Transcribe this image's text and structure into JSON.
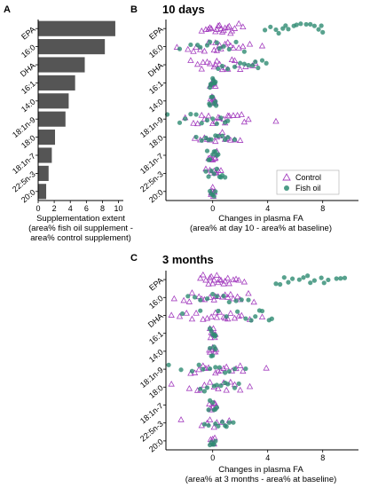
{
  "panel_a": {
    "label": "A",
    "xlabel_lines": [
      "Supplementation extent",
      "(area% fish oil supplement -",
      "area% control supplement)"
    ]
  },
  "panel_b": {
    "label": "B",
    "title": "10 days",
    "xlabel_lines": [
      "Changes in plasma FA",
      "(area% at day 10 -  area% at baseline)"
    ]
  },
  "panel_c": {
    "label": "C",
    "title": "3 months",
    "xlabel_lines": [
      "Changes in plasma FA",
      "(area% at 3 months -  area% at baseline)"
    ]
  },
  "legend": {
    "items": [
      "Control",
      "Fish oil"
    ]
  },
  "colors": {
    "bar": "#555555",
    "control": "#a43fbf",
    "fish_oil": "#2e8b72",
    "axis": "#000000"
  },
  "chart_data": [
    {
      "type": "bar",
      "orientation": "horizontal",
      "categories": [
        "EPA",
        "16:0",
        "DHA",
        "16:1",
        "14:0",
        "18:1n-9",
        "18:0",
        "18:1n-7",
        "22:5n-3",
        "20:0"
      ],
      "values": [
        9.6,
        8.3,
        5.8,
        4.6,
        3.8,
        3.4,
        2.1,
        1.7,
        1.3,
        1.0
      ],
      "xticks": [
        0,
        2,
        4,
        6,
        8,
        10
      ],
      "xlim": [
        0,
        10.6
      ]
    },
    {
      "type": "scatter",
      "orientation": "horizontal-strip",
      "categories": [
        "EPA",
        "16:0",
        "DHA",
        "16:1",
        "14:0",
        "18:1n-9",
        "18:0",
        "18:1n-7",
        "22:5n-3",
        "20:0"
      ],
      "xticks": [
        0,
        4,
        8
      ],
      "xlim": [
        -3.4,
        10.6
      ],
      "series": [
        {
          "name": "Control",
          "marker": "triangle-open",
          "points": [
            [
              0.5,
              1.4,
              -0.3,
              0.9,
              1.2,
              0.2,
              -0.8,
              1.6,
              0.6,
              -0.1,
              1.9,
              0.3,
              -0.5,
              1.1,
              0.7,
              2.2,
              -0.2,
              0.4,
              1.3,
              0.8
            ],
            [
              -1.2,
              0.5,
              1.3,
              -2.6,
              0.2,
              1.9,
              -0.6,
              0.9,
              2.7,
              -1.8,
              0.1,
              1.5,
              -0.3,
              2.2,
              -0.9,
              0.6,
              1.1,
              3.6,
              -1.4,
              0.3
            ],
            [
              -0.8,
              1.1,
              0.3,
              2.4,
              -1.6,
              0.7,
              1.8,
              -0.2,
              2.9,
              0.5,
              -1.1,
              1.4,
              0.1,
              3.1,
              -0.4,
              0.9,
              2.0,
              -0.7,
              1.6,
              0.2
            ],
            [
              0.1,
              -0.1,
              0.2,
              0.0,
              -0.2,
              0.1,
              0.05,
              -0.05
            ],
            [
              0.2,
              -0.1,
              0.0,
              0.15,
              -0.15,
              0.05,
              -0.05,
              0.1
            ],
            [
              -1.1,
              0.4,
              1.2,
              -0.6,
              2.1,
              0.8,
              -2.0,
              1.5,
              0.2,
              -0.3,
              2.6,
              0.9,
              -1.4,
              1.8,
              0.0,
              4.6,
              -0.8,
              1.1,
              0.5,
              2.3
            ],
            [
              -0.9,
              0.3,
              1.1,
              -0.4,
              0.7,
              1.6,
              -1.3,
              0.2,
              2.0,
              -0.2,
              0.9,
              1.3,
              -0.6,
              0.5
            ],
            [
              0.1,
              -0.1,
              0.3,
              -0.3,
              0.2,
              0.0,
              -0.2,
              0.15
            ],
            [
              0.4,
              -0.2,
              0.1,
              -0.5,
              0.3,
              0.6,
              -0.1,
              0.2
            ],
            [
              0.1,
              -0.1,
              0.05,
              -0.05,
              0.0,
              0.12,
              -0.12
            ]
          ]
        },
        {
          "name": "Fish oil",
          "marker": "circle",
          "points": [
            [
              4.2,
              4.8,
              5.3,
              5.9,
              6.4,
              7.1,
              7.7,
              8.0,
              5.5,
              6.8,
              4.6,
              7.4,
              5.1,
              6.1,
              7.9,
              3.8
            ],
            [
              -0.4,
              0.8,
              -1.6,
              1.2,
              0.3,
              -0.9,
              1.7,
              -2.4,
              0.5,
              -0.2,
              2.3,
              -1.1
            ],
            [
              0.4,
              1.6,
              2.3,
              2.9,
              3.3,
              3.6,
              1.1,
              2.6,
              3.9,
              0.7,
              2.0,
              3.1
            ],
            [
              0.1,
              -0.1,
              0.2,
              -0.2,
              0.0,
              0.15,
              -0.15,
              0.05
            ],
            [
              0.0,
              0.2,
              -0.2,
              0.1,
              -0.1,
              0.25,
              -0.25
            ],
            [
              -3.3,
              -2.4,
              -1.6,
              -0.8,
              0.0,
              0.6,
              1.1,
              -1.2,
              -0.4,
              0.9,
              -2.0,
              0.3
            ],
            [
              -0.8,
              -0.3,
              0.2,
              0.7,
              -1.2,
              1.1,
              0.4,
              -0.5,
              0.9,
              1.6,
              -0.1
            ],
            [
              0.2,
              -0.2,
              0.4,
              -0.4,
              0.0,
              0.3,
              -0.3,
              0.1
            ],
            [
              0.3,
              -0.3,
              0.6,
              -0.5,
              0.9,
              0.1,
              -0.1,
              0.5,
              0.7
            ],
            [
              0.1,
              -0.1,
              0.0,
              0.2,
              -0.2
            ]
          ]
        }
      ]
    },
    {
      "type": "scatter",
      "orientation": "horizontal-strip",
      "categories": [
        "EPA",
        "16:0",
        "DHA",
        "16:1",
        "14:0",
        "18:1n-9",
        "18:0",
        "18:1n-7",
        "22:5n-3",
        "20:0"
      ],
      "xticks": [
        0,
        4,
        8
      ],
      "xlim": [
        -3.4,
        10.6
      ],
      "series": [
        {
          "name": "Control",
          "marker": "triangle-open",
          "points": [
            [
              -0.7,
              0.3,
              1.1,
              -0.2,
              0.8,
              1.5,
              -0.5,
              0.1,
              1.9,
              0.6,
              -0.9,
              1.2,
              0.4,
              -0.1,
              2.3,
              0.9,
              -0.3,
              1.7,
              0.0,
              0.5
            ],
            [
              -2.8,
              -1.5,
              0.2,
              1.3,
              -0.6,
              2.0,
              -2.1,
              0.7,
              1.8,
              -1.0,
              0.4,
              2.6,
              -0.2,
              1.1,
              -1.7,
              0.9,
              3.0,
              -0.8,
              0.1,
              1.5
            ],
            [
              -3.0,
              -1.9,
              -0.4,
              0.8,
              2.1,
              -1.2,
              0.3,
              1.6,
              -2.4,
              3.6,
              0.9,
              -0.7,
              1.3,
              2.7,
              -0.1,
              0.5,
              1.9,
              -1.5,
              0.2,
              1.1
            ],
            [
              0.1,
              -0.1,
              0.2,
              -0.2,
              0.0,
              0.15,
              -0.15,
              0.05
            ],
            [
              0.2,
              -0.2,
              0.1,
              -0.1,
              0.0,
              0.25,
              -0.25
            ],
            [
              -1.6,
              -0.5,
              0.6,
              1.4,
              -1.0,
              2.2,
              0.2,
              -0.3,
              1.0,
              3.9,
              -1.3,
              0.8,
              1.7,
              -0.7,
              0.4,
              2.0
            ],
            [
              -3.0,
              -1.7,
              -0.6,
              0.4,
              1.3,
              -1.1,
              0.8,
              2.0,
              -0.2,
              1.6,
              2.7,
              0.1,
              -0.9,
              1.0
            ],
            [
              0.1,
              -0.1,
              0.25,
              -0.25,
              0.0,
              0.18,
              -0.18
            ],
            [
              -2.3,
              -0.4,
              0.3,
              0.7,
              -0.8,
              1.2,
              0.1,
              -0.2
            ],
            [
              0.1,
              -0.1,
              0.0,
              0.15,
              -0.15
            ]
          ]
        },
        {
          "name": "Fish oil",
          "marker": "circle",
          "points": [
            [
              4.6,
              5.2,
              5.8,
              6.3,
              6.9,
              7.4,
              7.9,
              8.4,
              9.0,
              9.6,
              5.5,
              6.6,
              7.1,
              8.1,
              4.9,
              9.3
            ],
            [
              -1.8,
              -0.9,
              0.3,
              1.2,
              -0.4,
              2.1,
              0.8,
              -1.3,
              1.7,
              0.0,
              2.6
            ],
            [
              -2.2,
              -0.9,
              1.0,
              2.4,
              3.1,
              3.6,
              4.1,
              2.8,
              1.8,
              3.4,
              0.4,
              4.3
            ],
            [
              0.1,
              -0.1,
              0.2,
              -0.2,
              0.0,
              0.15
            ],
            [
              0.0,
              0.2,
              -0.2,
              0.1,
              -0.1
            ],
            [
              -3.2,
              -2.3,
              -1.5,
              -0.7,
              0.2,
              0.9,
              1.6,
              -1.0,
              0.5,
              -0.2,
              2.4,
              1.2
            ],
            [
              -0.9,
              -0.4,
              0.1,
              0.6,
              1.1,
              1.6,
              -0.6,
              0.3,
              0.9,
              1.9
            ],
            [
              0.2,
              -0.2,
              0.3,
              -0.3,
              0.0,
              0.1
            ],
            [
              0.4,
              -0.3,
              0.7,
              1.2,
              1.5,
              -0.6,
              0.9,
              0.2,
              1.0
            ],
            [
              0.1,
              -0.1,
              0.0,
              0.2,
              -0.2
            ]
          ]
        }
      ]
    }
  ]
}
